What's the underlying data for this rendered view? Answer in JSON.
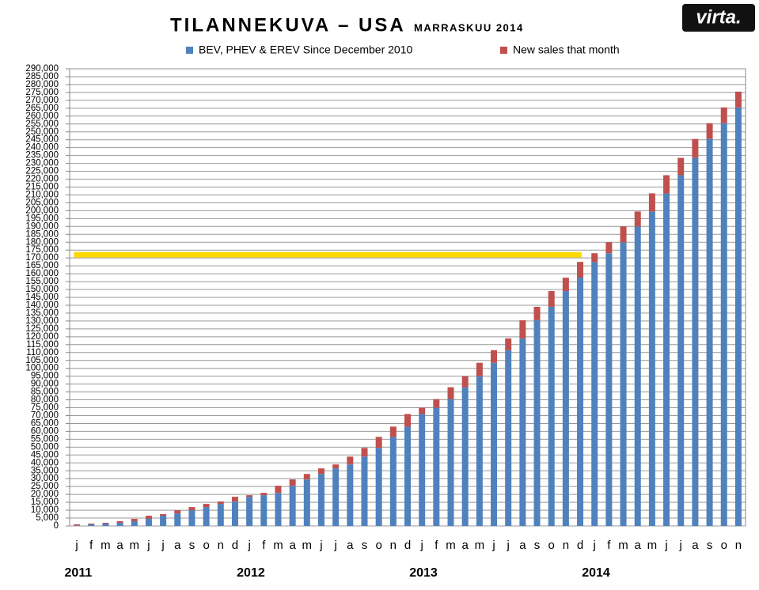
{
  "chart_data": {
    "type": "stacked_bar",
    "title": "TILANNEKUVA – USA",
    "subtitle": "MARRASKUU 2014",
    "logo": "virta.",
    "categories": [
      "j",
      "f",
      "m",
      "a",
      "m",
      "j",
      "j",
      "a",
      "s",
      "o",
      "n",
      "d",
      "j",
      "f",
      "m",
      "a",
      "m",
      "j",
      "j",
      "a",
      "s",
      "o",
      "n",
      "d",
      "j",
      "f",
      "m",
      "a",
      "m",
      "j",
      "j",
      "a",
      "s",
      "o",
      "n",
      "d",
      "j",
      "f",
      "m",
      "a",
      "m",
      "j",
      "j",
      "a",
      "s",
      "o",
      "n"
    ],
    "years": [
      "2011",
      "2012",
      "2013",
      "2014"
    ],
    "series": [
      {
        "name": "BEV, PHEV & EREV Since December 2010",
        "color": "#4f81bd",
        "values": [
          300,
          1000,
          1500,
          2000,
          3000,
          4500,
          6500,
          8000,
          10000,
          12000,
          14000,
          15500,
          18500,
          19500,
          21000,
          25500,
          29500,
          33000,
          36500,
          39000,
          44000,
          49500,
          56500,
          63000,
          71000,
          75000,
          80500,
          88000,
          95000,
          103500,
          111500,
          119000,
          130500,
          139000,
          149000,
          157500,
          167500,
          173000,
          180000,
          190000,
          199500,
          211000,
          222500,
          233500,
          245500,
          255500,
          265500
        ]
      },
      {
        "name": "New sales that month",
        "color": "#c0504d",
        "values": [
          700,
          500,
          500,
          1000,
          1500,
          2000,
          1000,
          2000,
          2000,
          2000,
          1500,
          3000,
          1000,
          1500,
          4500,
          4000,
          3500,
          3500,
          2500,
          5000,
          5500,
          7000,
          6500,
          8000,
          4000,
          5500,
          7500,
          7000,
          8500,
          8000,
          7500,
          11500,
          8500,
          10000,
          8500,
          10000,
          5500,
          7000,
          10000,
          9500,
          11500,
          11500,
          11000,
          12000,
          10000,
          10000,
          10000
        ]
      }
    ],
    "reference_line": {
      "value": 172000,
      "color": "#ffd700"
    },
    "ylim": [
      0,
      290000
    ],
    "yticks": [
      0,
      {
        "value": 5000,
        "label": "5,000"
      },
      {
        "value": 10000,
        "label": "10,000"
      },
      {
        "value": 15000,
        "label": "15,000"
      },
      {
        "value": 20000,
        "label": "20,000"
      },
      {
        "value": 25000,
        "label": "25,000"
      },
      {
        "value": 30000,
        "label": "30,000"
      },
      {
        "value": 35000,
        "label": "35,000"
      },
      {
        "value": 40000,
        "label": "40,000"
      },
      {
        "value": 45000,
        "label": "45,000"
      },
      {
        "value": 50000,
        "label": "50,000"
      },
      {
        "value": 55000,
        "label": "55,000"
      },
      {
        "value": 60000,
        "label": "60,000"
      },
      {
        "value": 65000,
        "label": "65,000"
      },
      {
        "value": 70000,
        "label": "70,000"
      },
      {
        "value": 75000,
        "label": "75,000"
      },
      {
        "value": 80000,
        "label": "80,000"
      },
      {
        "value": 85000,
        "label": "85,000"
      },
      {
        "value": 90000,
        "label": "90,000"
      },
      {
        "value": 95000,
        "label": "95,000"
      },
      {
        "value": 100000,
        "label": "100,000"
      },
      {
        "value": 105000,
        "label": "105,000"
      },
      {
        "value": 110000,
        "label": "110,000"
      },
      {
        "value": 115000,
        "label": "115,000"
      },
      {
        "value": 120000,
        "label": "120,000"
      },
      {
        "value": 125000,
        "label": "125,000"
      },
      {
        "value": 130000,
        "label": "130,000"
      },
      {
        "value": 135000,
        "label": "135,000"
      },
      {
        "value": 140000,
        "label": "140,000"
      },
      {
        "value": 145000,
        "label": "145,000"
      },
      {
        "value": 150000,
        "label": "150,000"
      },
      {
        "value": 155000,
        "label": "155,000"
      },
      {
        "value": 160000,
        "label": "160,000"
      },
      {
        "value": 165000,
        "label": "165,000"
      },
      {
        "value": 170000,
        "label": "170,000"
      },
      {
        "value": 175000,
        "label": "175,000"
      },
      {
        "value": 180000,
        "label": "180,000"
      },
      {
        "value": 185000,
        "label": "185,000"
      },
      {
        "value": 190000,
        "label": "190,000"
      },
      {
        "value": 195000,
        "label": "195,000"
      },
      {
        "value": 200000,
        "label": "200,000"
      },
      {
        "value": 205000,
        "label": "205,000"
      },
      {
        "value": 210000,
        "label": "210,000"
      },
      {
        "value": 215000,
        "label": "215,000"
      },
      {
        "value": 220000,
        "label": "220,000"
      },
      {
        "value": 225000,
        "label": "225,000"
      },
      {
        "value": 230000,
        "label": "230,000"
      },
      {
        "value": 235000,
        "label": "235,000"
      },
      {
        "value": 240000,
        "label": "240,000"
      },
      {
        "value": 245000,
        "label": "245,000"
      },
      {
        "value": 250000,
        "label": "250,000"
      },
      {
        "value": 255000,
        "label": "255,000"
      },
      {
        "value": 260000,
        "label": "260,000"
      },
      {
        "value": 265000,
        "label": "265,000"
      },
      {
        "value": 270000,
        "label": "270,000"
      },
      {
        "value": 275000,
        "label": "275,000"
      },
      {
        "value": 280000,
        "label": "280,000"
      },
      {
        "value": 285000,
        "label": "285,000"
      },
      {
        "value": 290000,
        "label": "290,000"
      }
    ],
    "grid": true
  }
}
